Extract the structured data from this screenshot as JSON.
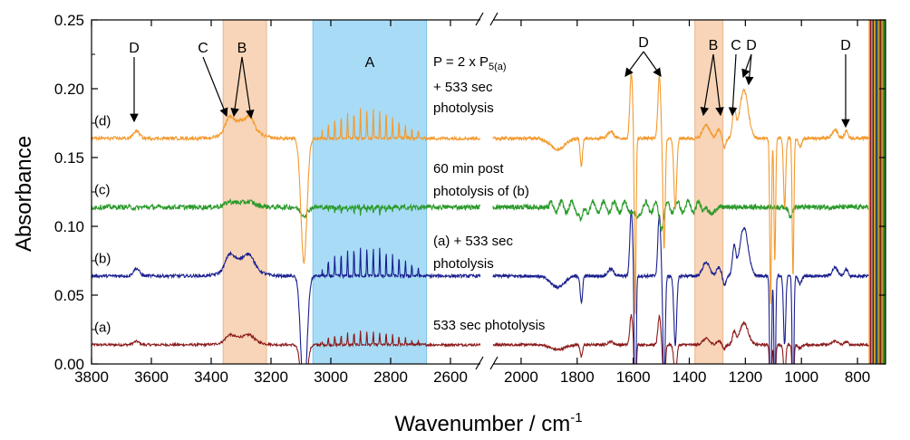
{
  "chart_data": {
    "type": "line",
    "xlabel": "Wavenumber / cm",
    "xlabel_sup": "-1",
    "ylabel": "Absorbance",
    "ylim": [
      0,
      0.25
    ],
    "y_ticks": [
      "0.00",
      "0.05",
      "0.10",
      "0.15",
      "0.20",
      "0.25"
    ],
    "x_axis_break": [
      2500,
      2100
    ],
    "x_left_segment": [
      3800,
      2500
    ],
    "x_right_segment": [
      2100,
      700
    ],
    "x_ticks_left": [
      "3800",
      "3600",
      "3400",
      "3200",
      "3000",
      "2800",
      "2600"
    ],
    "x_ticks_right": [
      "2000",
      "1800",
      "1600",
      "1400",
      "1200",
      "1000",
      "800"
    ],
    "bands": [
      {
        "label": "A",
        "x": [
          3060,
          2680
        ],
        "color": "#a8dcf6"
      },
      {
        "label": "B",
        "x": [
          3360,
          3215
        ],
        "color": "#f8d5b8"
      },
      {
        "label": "B",
        "x": [
          1380,
          1280
        ],
        "color": "#f8d5b8"
      }
    ],
    "series": [
      {
        "label": "(a)",
        "baseline": 0.01,
        "color": "#8b1a1a",
        "description": "533 sec photolysis"
      },
      {
        "label": "(b)",
        "baseline": 0.06,
        "color": "#1a1f8f",
        "description": "(a) + 533 sec photolysis"
      },
      {
        "label": "(c)",
        "baseline": 0.11,
        "color": "#2a9a2a",
        "description": "60 min post photolysis of (b)"
      },
      {
        "label": "(d)",
        "baseline": 0.16,
        "color": "#f39a2e",
        "description": "P = 2 x P5(a) + 533 sec photolysis"
      }
    ],
    "annotations": {
      "d_line1": "P = 2 x P",
      "d_line1_sub": "5(a)",
      "d_line2": "+ 533 sec",
      "d_line3": "photolysis",
      "c_line1": "60 min post",
      "c_line2": "photolysis of (b)",
      "b_line1": "(a) + 533 sec",
      "b_line2": "photolysis",
      "a_line1": "533 sec photolysis"
    },
    "peak_labels": [
      {
        "text": "D",
        "x": 3650
      },
      {
        "text": "C",
        "x": 3340
      },
      {
        "text": "B",
        "x": 3300
      },
      {
        "text": "D",
        "x": 1560
      },
      {
        "text": "B",
        "x": 1330
      },
      {
        "text": "C",
        "x": 1255
      },
      {
        "text": "D",
        "x": 1210
      },
      {
        "text": "D",
        "x": 880
      }
    ],
    "grid": false
  }
}
